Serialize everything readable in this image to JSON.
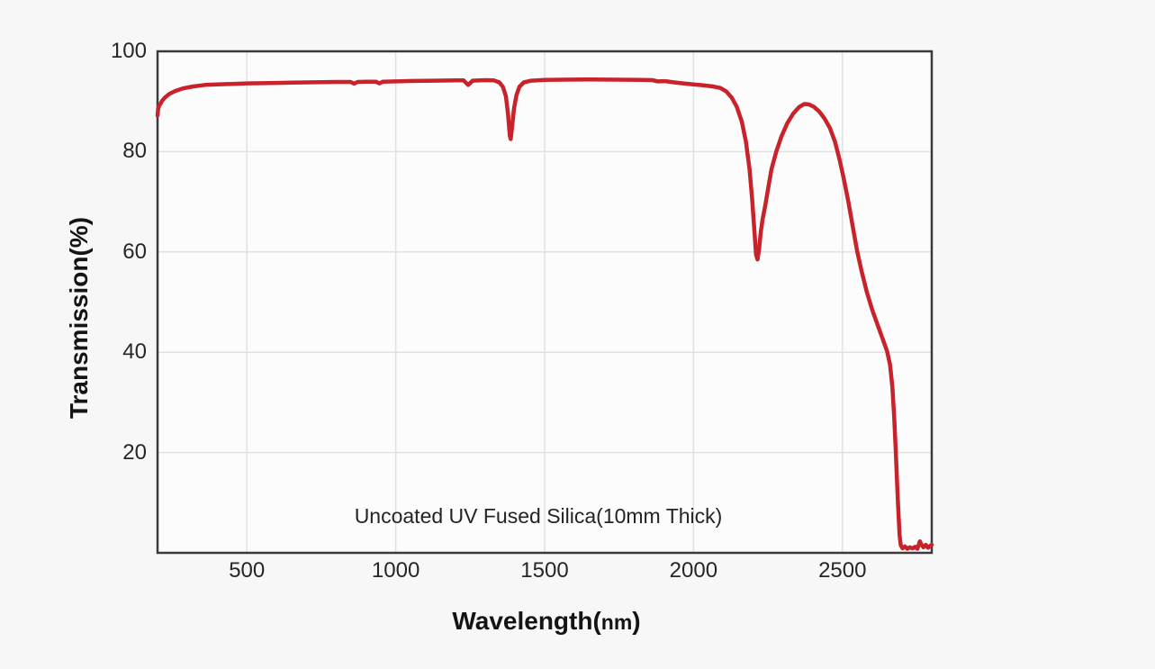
{
  "chart_data": {
    "type": "line",
    "title": "",
    "xlabel": "Wavelength(nm)",
    "ylabel": "Transmission(%)",
    "annotation": "Uncoated UV Fused Silica(10mm Thick)",
    "xlim": [
      200,
      2800
    ],
    "ylim": [
      0,
      100
    ],
    "x_ticks": [
      500,
      1000,
      1500,
      2000,
      2500
    ],
    "y_ticks": [
      20,
      40,
      60,
      80,
      100
    ],
    "grid": true,
    "legend": "none",
    "line_color": "#c8232a",
    "plot_bg": "#fcfcfd",
    "series": [
      {
        "name": "Uncoated UV Fused Silica (10mm Thick)",
        "x": [
          200,
          202,
          206,
          215,
          225,
          240,
          260,
          285,
          320,
          360,
          400,
          450,
          500,
          550,
          600,
          650,
          700,
          750,
          800,
          848,
          860,
          872,
          900,
          933,
          945,
          957,
          1000,
          1060,
          1130,
          1200,
          1228,
          1243,
          1258,
          1300,
          1330,
          1348,
          1360,
          1370,
          1377,
          1383,
          1386,
          1390,
          1397,
          1405,
          1415,
          1430,
          1455,
          1500,
          1560,
          1650,
          1750,
          1830,
          1862,
          1880,
          1905,
          1935,
          1965,
          2000,
          2030,
          2065,
          2090,
          2110,
          2128,
          2145,
          2162,
          2176,
          2188,
          2197,
          2204,
          2210,
          2215,
          2220,
          2226,
          2232,
          2240,
          2250,
          2262,
          2278,
          2295,
          2315,
          2335,
          2355,
          2372,
          2388,
          2405,
          2422,
          2440,
          2458,
          2475,
          2490,
          2505,
          2520,
          2535,
          2550,
          2565,
          2582,
          2600,
          2618,
          2636,
          2650,
          2660,
          2668,
          2674,
          2679,
          2684,
          2688,
          2692,
          2696,
          2702,
          2710,
          2718,
          2726,
          2736,
          2744,
          2752,
          2760,
          2766,
          2772,
          2780,
          2788,
          2795,
          2800
        ],
        "y": [
          87.2,
          88.6,
          89.2,
          90.1,
          90.8,
          91.5,
          92.1,
          92.6,
          93.0,
          93.3,
          93.4,
          93.5,
          93.6,
          93.65,
          93.7,
          93.75,
          93.8,
          93.85,
          93.9,
          93.9,
          93.55,
          93.9,
          93.95,
          93.95,
          93.6,
          93.95,
          94.0,
          94.1,
          94.15,
          94.2,
          94.2,
          93.3,
          94.15,
          94.25,
          94.2,
          93.8,
          92.9,
          91.0,
          87.5,
          83.2,
          82.5,
          84.5,
          88.5,
          91.2,
          92.9,
          93.8,
          94.15,
          94.3,
          94.35,
          94.4,
          94.35,
          94.3,
          94.25,
          94.0,
          94.05,
          93.8,
          93.6,
          93.4,
          93.25,
          93.0,
          92.7,
          92.0,
          90.8,
          89.0,
          86.0,
          82.0,
          76.5,
          70.5,
          64.5,
          59.5,
          58.5,
          60.5,
          64.0,
          66.5,
          69.0,
          72.5,
          76.5,
          80.0,
          83.0,
          85.7,
          87.6,
          88.9,
          89.5,
          89.4,
          88.9,
          88.0,
          86.6,
          84.7,
          82.0,
          78.5,
          74.5,
          70.0,
          65.0,
          60.0,
          56.0,
          52.0,
          48.5,
          45.5,
          42.5,
          40.2,
          37.5,
          33.0,
          27.0,
          20.5,
          13.5,
          8.0,
          3.5,
          1.5,
          0.9,
          1.3,
          0.8,
          1.1,
          0.9,
          1.2,
          0.8,
          2.3,
          1.6,
          1.1,
          1.6,
          1.0,
          1.4,
          1.6
        ]
      }
    ]
  }
}
